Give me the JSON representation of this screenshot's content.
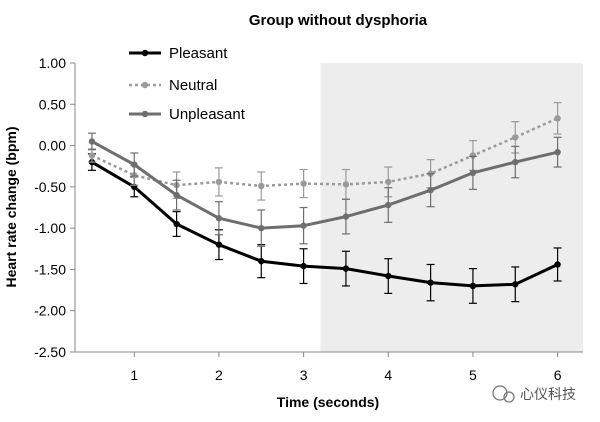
{
  "chart_data": {
    "type": "line",
    "title": "Group without dysphoria",
    "xlabel": "Time (seconds)",
    "ylabel": "Heart rate change (bpm)",
    "xlim": [
      0.3,
      6.3
    ],
    "ylim": [
      -2.5,
      1.0
    ],
    "x_ticks": [
      1,
      2,
      3,
      4,
      5,
      6
    ],
    "y_ticks": [
      -2.5,
      -2.0,
      -1.5,
      -1.0,
      -0.5,
      0.0,
      0.5,
      1.0
    ],
    "x_tick_labels": [
      "1",
      "2",
      "3",
      "4",
      "5",
      "6"
    ],
    "y_tick_labels": [
      "-2.50",
      "-2.00",
      "-1.50",
      "-1.00",
      "-0.50",
      "0.00",
      "0.50",
      "1.00"
    ],
    "shaded_region": {
      "x_start": 3.2,
      "x_end": 6.3,
      "color": "#ededed"
    },
    "legend": {
      "placement": "top-left"
    },
    "x": [
      0.5,
      1.0,
      1.5,
      2.0,
      2.5,
      3.0,
      3.5,
      4.0,
      4.5,
      5.0,
      5.5,
      6.0
    ],
    "series": [
      {
        "name": "Pleasant",
        "color": "#000000",
        "dash": "solid",
        "values": [
          -0.2,
          -0.5,
          -0.95,
          -1.2,
          -1.4,
          -1.46,
          -1.49,
          -1.58,
          -1.66,
          -1.7,
          -1.68,
          -1.44
        ],
        "errors": [
          0.1,
          0.12,
          0.15,
          0.18,
          0.2,
          0.21,
          0.21,
          0.21,
          0.22,
          0.21,
          0.21,
          0.2
        ]
      },
      {
        "name": "Neutral",
        "color": "#9a9a9a",
        "dash": "dotted",
        "values": [
          -0.12,
          -0.36,
          -0.48,
          -0.44,
          -0.49,
          -0.46,
          -0.47,
          -0.44,
          -0.34,
          -0.12,
          0.1,
          0.33
        ],
        "errors": [
          0.08,
          0.12,
          0.16,
          0.17,
          0.17,
          0.17,
          0.18,
          0.18,
          0.17,
          0.18,
          0.19,
          0.19
        ]
      },
      {
        "name": "Unpleasant",
        "color": "#6e6e6e",
        "dash": "solid",
        "values": [
          0.05,
          -0.23,
          -0.6,
          -0.88,
          -1.0,
          -0.97,
          -0.86,
          -0.72,
          -0.54,
          -0.33,
          -0.2,
          -0.08
        ],
        "errors": [
          0.1,
          0.14,
          0.18,
          0.2,
          0.22,
          0.22,
          0.21,
          0.21,
          0.2,
          0.2,
          0.19,
          0.18
        ]
      }
    ]
  },
  "watermark": {
    "text": "心仪科技",
    "icon": "wechat-icon"
  }
}
